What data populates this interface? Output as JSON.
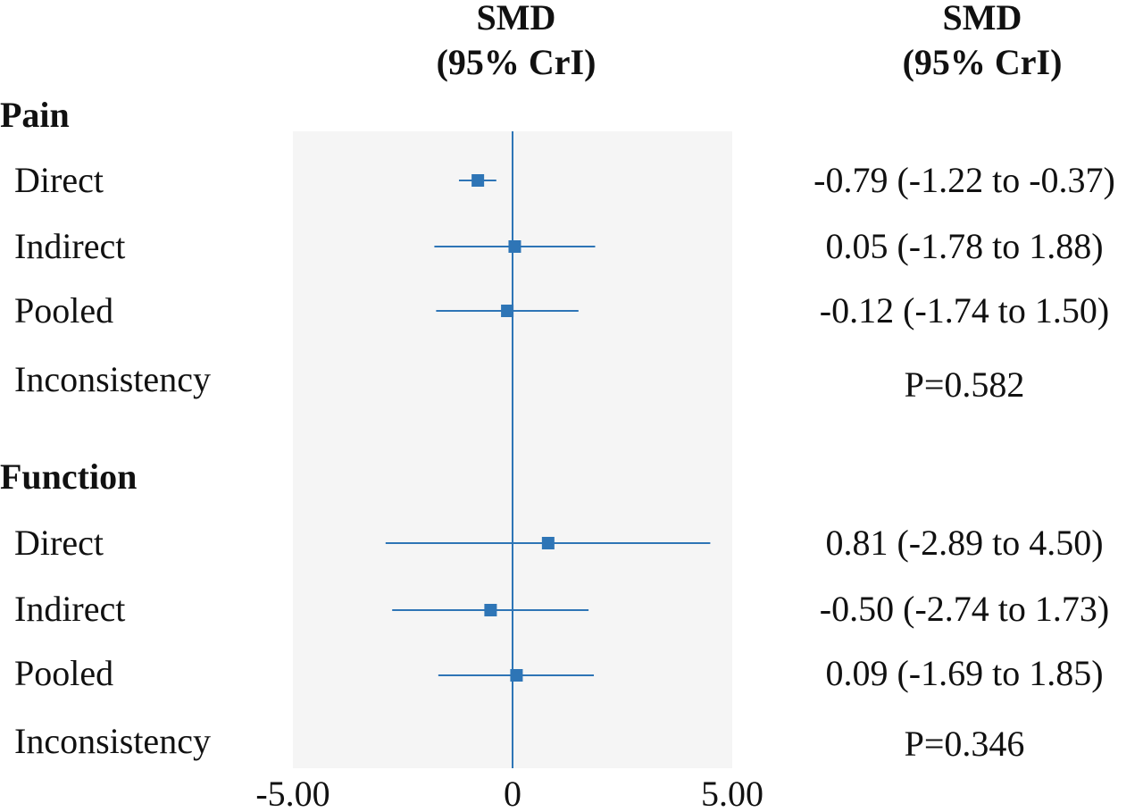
{
  "header": {
    "plot_line1": "SMD",
    "plot_line2": "(95% CrI)",
    "values_line1": "SMD",
    "values_line2": "(95% CrI)"
  },
  "colors": {
    "marker": "#2e75b6",
    "panel": "#f5f5f5"
  },
  "chart_data": {
    "type": "forest",
    "xlim": [
      -5.0,
      5.0
    ],
    "reference_line": 0,
    "x_ticks": [
      "-5.00",
      "0",
      "5.00"
    ],
    "x_tick_values": [
      -5.0,
      0,
      5.0
    ],
    "groups": [
      {
        "title": "Pain",
        "rows": [
          {
            "label": "Direct",
            "value_text": "-0.79 (-1.22 to -0.37)",
            "estimate": -0.79,
            "lower": -1.22,
            "upper": -0.37
          },
          {
            "label": "Indirect",
            "value_text": "0.05 (-1.78 to 1.88)",
            "estimate": 0.05,
            "lower": -1.78,
            "upper": 1.88
          },
          {
            "label": "Pooled",
            "value_text": "-0.12 (-1.74 to 1.50)",
            "estimate": -0.12,
            "lower": -1.74,
            "upper": 1.5
          },
          {
            "label": "Inconsistency",
            "value_text": "P=0.582"
          }
        ]
      },
      {
        "title": "Function",
        "rows": [
          {
            "label": "Direct",
            "value_text": "0.81 (-2.89 to 4.50)",
            "estimate": 0.81,
            "lower": -2.89,
            "upper": 4.5
          },
          {
            "label": "Indirect",
            "value_text": "-0.50 (-2.74 to 1.73)",
            "estimate": -0.5,
            "lower": -2.74,
            "upper": 1.73
          },
          {
            "label": "Pooled",
            "value_text": "0.09 (-1.69 to 1.85)",
            "estimate": 0.09,
            "lower": -1.69,
            "upper": 1.85
          },
          {
            "label": "Inconsistency",
            "value_text": "P=0.346"
          }
        ]
      }
    ]
  }
}
